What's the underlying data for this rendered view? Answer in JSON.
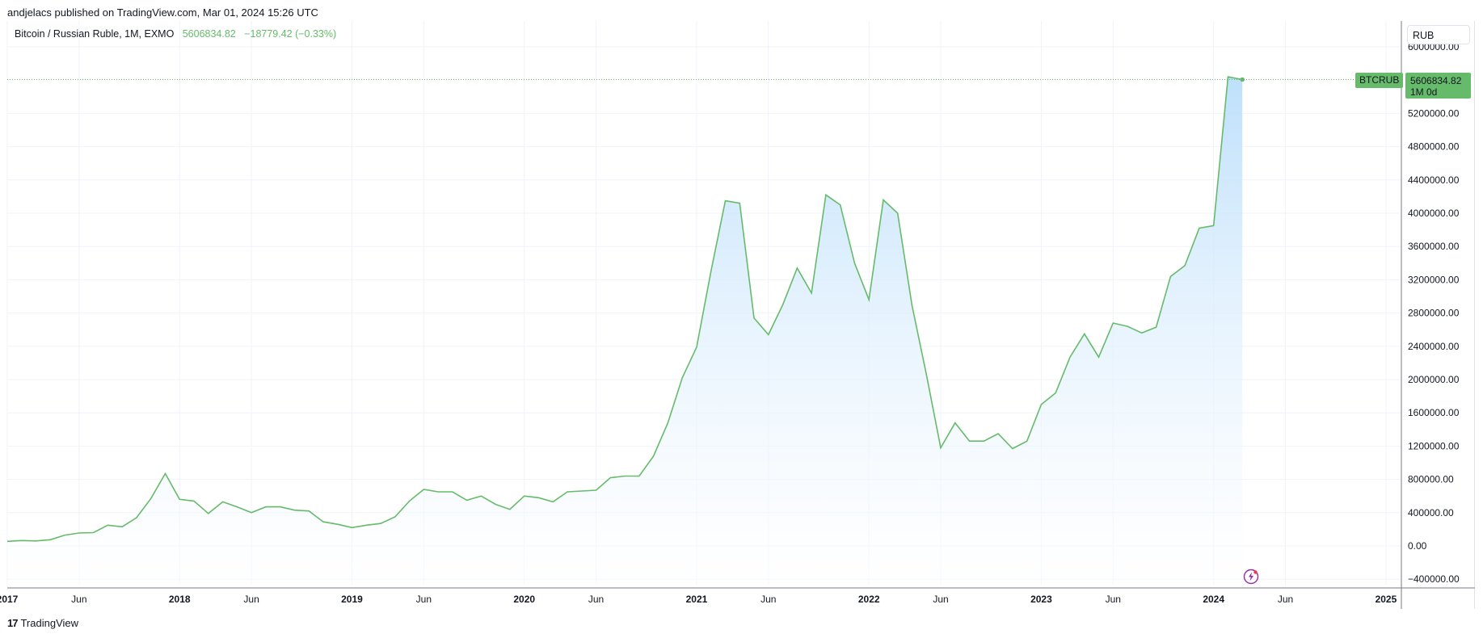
{
  "publish_line": "andjelacs published on TradingView.com, Mar 01, 2024 15:26 UTC",
  "legend": {
    "symbol_text": "Bitcoin / Russian Ruble, 1M, EXMO",
    "last_value": "5606834.82",
    "change": "−18779.42 (−0.33%)"
  },
  "currency_button": "RUB",
  "price_tag": {
    "symbol": "BTCRUB",
    "price": "5606834.82",
    "countdown": "1M 0d"
  },
  "footer": {
    "logo_mark": "17",
    "brand": "TradingView"
  },
  "colors": {
    "line": "#66bb6a",
    "area_top": "#bbdefb",
    "area_bottom": "#ffffff",
    "grid": "#f0f3fa",
    "axis_text": "#131722"
  },
  "icons": {
    "bolt": "lightning-bolt-icon"
  },
  "chart_data": {
    "type": "area",
    "title": "Bitcoin / Russian Ruble, 1M, EXMO",
    "ylim": [
      -500000,
      6000000
    ],
    "grid": true,
    "y_ticks": [
      {
        "value": -400000,
        "label": "−400000.00"
      },
      {
        "value": 0,
        "label": "0.00"
      },
      {
        "value": 400000,
        "label": "400000.00"
      },
      {
        "value": 800000,
        "label": "800000.00"
      },
      {
        "value": 1200000,
        "label": "1200000.00"
      },
      {
        "value": 1600000,
        "label": "1600000.00"
      },
      {
        "value": 2000000,
        "label": "2000000.00"
      },
      {
        "value": 2400000,
        "label": "2400000.00"
      },
      {
        "value": 2800000,
        "label": "2800000.00"
      },
      {
        "value": 3200000,
        "label": "3200000.00"
      },
      {
        "value": 3600000,
        "label": "3600000.00"
      },
      {
        "value": 4000000,
        "label": "4000000.00"
      },
      {
        "value": 4400000,
        "label": "4400000.00"
      },
      {
        "value": 4800000,
        "label": "4800000.00"
      },
      {
        "value": 5200000,
        "label": "5200000.00"
      },
      {
        "value": 6000000,
        "label": "6000000.00"
      }
    ],
    "x_ticks": [
      {
        "date": "2017-01",
        "label": "2017",
        "bold": true
      },
      {
        "date": "2017-06",
        "label": "Jun",
        "bold": false
      },
      {
        "date": "2018-01",
        "label": "2018",
        "bold": true
      },
      {
        "date": "2018-06",
        "label": "Jun",
        "bold": false
      },
      {
        "date": "2019-01",
        "label": "2019",
        "bold": true
      },
      {
        "date": "2019-06",
        "label": "Jun",
        "bold": false
      },
      {
        "date": "2020-01",
        "label": "2020",
        "bold": true
      },
      {
        "date": "2020-06",
        "label": "Jun",
        "bold": false
      },
      {
        "date": "2021-01",
        "label": "2021",
        "bold": true
      },
      {
        "date": "2021-06",
        "label": "Jun",
        "bold": false
      },
      {
        "date": "2022-01",
        "label": "2022",
        "bold": true
      },
      {
        "date": "2022-06",
        "label": "Jun",
        "bold": false
      },
      {
        "date": "2023-01",
        "label": "2023",
        "bold": true
      },
      {
        "date": "2023-06",
        "label": "Jun",
        "bold": false
      },
      {
        "date": "2024-01",
        "label": "2024",
        "bold": true
      },
      {
        "date": "2024-06",
        "label": "Jun",
        "bold": false
      },
      {
        "date": "2025-01",
        "label": "2025",
        "bold": true
      }
    ],
    "x_range": [
      "2017-01",
      "2025-02"
    ],
    "series": [
      {
        "x": [
          "2017-01",
          "2017-02",
          "2017-03",
          "2017-04",
          "2017-05",
          "2017-06",
          "2017-07",
          "2017-08",
          "2017-09",
          "2017-10",
          "2017-11",
          "2017-12",
          "2018-01",
          "2018-02",
          "2018-03",
          "2018-04",
          "2018-05",
          "2018-06",
          "2018-07",
          "2018-08",
          "2018-09",
          "2018-10",
          "2018-11",
          "2018-12",
          "2019-01",
          "2019-02",
          "2019-03",
          "2019-04",
          "2019-05",
          "2019-06",
          "2019-07",
          "2019-08",
          "2019-09",
          "2019-10",
          "2019-11",
          "2019-12",
          "2020-01",
          "2020-02",
          "2020-03",
          "2020-04",
          "2020-05",
          "2020-06",
          "2020-07",
          "2020-08",
          "2020-09",
          "2020-10",
          "2020-11",
          "2020-12",
          "2021-01",
          "2021-02",
          "2021-03",
          "2021-04",
          "2021-05",
          "2021-06",
          "2021-07",
          "2021-08",
          "2021-09",
          "2021-10",
          "2021-11",
          "2021-12",
          "2022-01",
          "2022-02",
          "2022-03",
          "2022-04",
          "2022-05",
          "2022-06",
          "2022-07",
          "2022-08",
          "2022-09",
          "2022-10",
          "2022-11",
          "2022-12",
          "2023-01",
          "2023-02",
          "2023-03",
          "2023-04",
          "2023-05",
          "2023-06",
          "2023-07",
          "2023-08",
          "2023-09",
          "2023-10",
          "2023-11",
          "2023-12",
          "2024-01",
          "2024-02",
          "2024-03"
        ],
        "y": [
          55000,
          65000,
          60000,
          75000,
          130000,
          155000,
          160000,
          250000,
          230000,
          340000,
          570000,
          870000,
          560000,
          540000,
          390000,
          530000,
          470000,
          400000,
          470000,
          470000,
          430000,
          420000,
          290000,
          260000,
          220000,
          250000,
          270000,
          350000,
          540000,
          680000,
          650000,
          650000,
          550000,
          600000,
          500000,
          440000,
          600000,
          580000,
          530000,
          650000,
          660000,
          670000,
          820000,
          840000,
          840000,
          1080000,
          1480000,
          2020000,
          2390000,
          3300000,
          4150000,
          4120000,
          2740000,
          2540000,
          2900000,
          3340000,
          3040000,
          4220000,
          4100000,
          3400000,
          2960000,
          4160000,
          4000000,
          2890000,
          2060000,
          1180000,
          1480000,
          1260000,
          1260000,
          1350000,
          1170000,
          1260000,
          1700000,
          1840000,
          2270000,
          2550000,
          2270000,
          2680000,
          2640000,
          2560000,
          2630000,
          3240000,
          3370000,
          3820000,
          3850000,
          5640000,
          5606834.82
        ]
      }
    ]
  }
}
